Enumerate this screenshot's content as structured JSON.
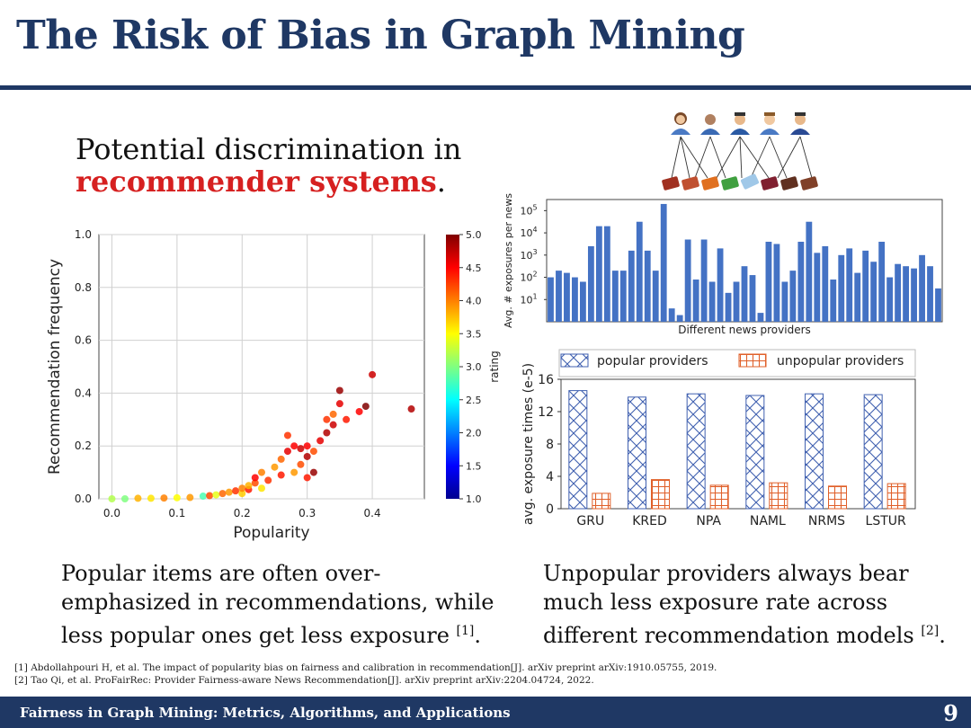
{
  "slide": {
    "title": "The Risk of Bias in Graph Mining",
    "subtitle_line1": "Potential discrimination in",
    "subtitle_highlight": "recommender systems",
    "subtitle_end": ".",
    "left_caption_lines": [
      "Popular items are often over-",
      "emphasized in recommendations, while",
      "less popular ones get less exposure"
    ],
    "left_caption_ref": "[1]",
    "left_caption_end": ".",
    "right_caption_lines": [
      "Unpopular providers always bear",
      "much less exposure rate across",
      "different recommendation models"
    ],
    "right_caption_ref": "[2]",
    "right_caption_end": ".",
    "references": [
      "[1] Abdollahpouri H, et al. The impact of popularity bias on fairness and calibration in recommendation[J]. arXiv preprint arXiv:1910.05755, 2019.",
      "[2] Tao Qi, et al. ProFairRec: Provider Fairness-aware News Recommendation[J]. arXiv preprint arXiv:2204.04724, 2022."
    ],
    "footer": "Fairness in Graph Mining: Metrics, Algorithms, and Applications",
    "page_number": "9"
  },
  "colors": {
    "title": "#1f3864",
    "highlight": "#d62020",
    "bar_blue": "#4472c4",
    "popular": "#4060b0",
    "unpopular": "#e0602a"
  },
  "chart_data": [
    {
      "type": "scatter",
      "xlabel": "Popularity",
      "ylabel": "Recommendation frequency",
      "xlim": [
        -0.02,
        0.48
      ],
      "ylim": [
        0.0,
        1.0
      ],
      "xticks": [
        "0.0",
        "0.1",
        "0.2",
        "0.3",
        "0.4"
      ],
      "xtick_values": [
        0.0,
        0.1,
        0.2,
        0.3,
        0.4
      ],
      "yticks": [
        "0.0",
        "0.2",
        "0.4",
        "0.6",
        "0.8",
        "1.0"
      ],
      "ytick_values": [
        0.0,
        0.2,
        0.4,
        0.6,
        0.8,
        1.0
      ],
      "colorbar": {
        "label": "rating",
        "min": 1.0,
        "max": 5.0,
        "ticks": [
          "1.0",
          "1.5",
          "2.0",
          "2.5",
          "3.0",
          "3.5",
          "4.0",
          "4.5",
          "5.0"
        ]
      },
      "grid": true,
      "points": [
        [
          0.0,
          0.0,
          3.2
        ],
        [
          0.02,
          0.0,
          3.0
        ],
        [
          0.04,
          0.002,
          3.8
        ],
        [
          0.06,
          0.002,
          3.6
        ],
        [
          0.08,
          0.003,
          4.0
        ],
        [
          0.1,
          0.004,
          3.5
        ],
        [
          0.12,
          0.005,
          3.9
        ],
        [
          0.14,
          0.01,
          2.8
        ],
        [
          0.15,
          0.012,
          4.2
        ],
        [
          0.16,
          0.015,
          3.4
        ],
        [
          0.17,
          0.02,
          4.1
        ],
        [
          0.18,
          0.025,
          3.9
        ],
        [
          0.19,
          0.03,
          4.3
        ],
        [
          0.2,
          0.02,
          3.7
        ],
        [
          0.2,
          0.04,
          4.0
        ],
        [
          0.21,
          0.035,
          4.4
        ],
        [
          0.21,
          0.05,
          3.8
        ],
        [
          0.22,
          0.06,
          4.2
        ],
        [
          0.22,
          0.08,
          4.5
        ],
        [
          0.23,
          0.04,
          3.6
        ],
        [
          0.23,
          0.1,
          4.0
        ],
        [
          0.24,
          0.07,
          4.3
        ],
        [
          0.25,
          0.12,
          3.9
        ],
        [
          0.26,
          0.09,
          4.4
        ],
        [
          0.26,
          0.15,
          4.1
        ],
        [
          0.27,
          0.18,
          4.6
        ],
        [
          0.27,
          0.24,
          4.3
        ],
        [
          0.28,
          0.1,
          3.9
        ],
        [
          0.28,
          0.2,
          4.5
        ],
        [
          0.29,
          0.13,
          4.2
        ],
        [
          0.29,
          0.19,
          4.7
        ],
        [
          0.3,
          0.08,
          4.4
        ],
        [
          0.3,
          0.16,
          4.8
        ],
        [
          0.3,
          0.2,
          4.5
        ],
        [
          0.31,
          0.1,
          4.9
        ],
        [
          0.31,
          0.18,
          4.2
        ],
        [
          0.32,
          0.22,
          4.6
        ],
        [
          0.33,
          0.25,
          4.8
        ],
        [
          0.33,
          0.3,
          4.3
        ],
        [
          0.34,
          0.28,
          4.7
        ],
        [
          0.34,
          0.32,
          4.1
        ],
        [
          0.35,
          0.36,
          4.6
        ],
        [
          0.35,
          0.41,
          4.9
        ],
        [
          0.36,
          0.3,
          4.4
        ],
        [
          0.38,
          0.33,
          4.5
        ],
        [
          0.39,
          0.35,
          5.0
        ],
        [
          0.4,
          0.47,
          4.7
        ],
        [
          0.46,
          0.34,
          4.8
        ]
      ]
    },
    {
      "type": "bar",
      "xlabel": "Different news providers",
      "ylabel": "Avg. # exposures per news",
      "yscale": "log",
      "ylim_log10": [
        0,
        5.5
      ],
      "yticks": [
        "10^1",
        "10^2",
        "10^3",
        "10^4",
        "10^5"
      ],
      "values_log10": [
        2.0,
        2.3,
        2.2,
        2.0,
        1.8,
        3.4,
        4.3,
        4.3,
        2.3,
        2.3,
        3.2,
        4.5,
        3.2,
        2.3,
        5.3,
        0.6,
        0.3,
        3.7,
        1.9,
        3.7,
        1.8,
        3.3,
        1.3,
        1.8,
        2.5,
        2.1,
        0.4,
        3.6,
        3.5,
        1.8,
        2.3,
        3.6,
        4.5,
        3.1,
        3.4,
        1.9,
        3.0,
        3.3,
        2.2,
        3.2,
        2.7,
        3.6,
        2.0,
        2.6,
        2.5,
        2.4,
        3.0,
        2.5,
        1.5
      ]
    },
    {
      "type": "bar",
      "xlabel": "",
      "ylabel": "avg. exposure times (e-5)",
      "categories": [
        "GRU",
        "KRED",
        "NPA",
        "NAML",
        "NRMS",
        "LSTUR"
      ],
      "ylim": [
        0,
        16
      ],
      "yticks": [
        "0",
        "4",
        "8",
        "12",
        "16"
      ],
      "ytick_values": [
        0,
        4,
        8,
        12,
        16
      ],
      "legend": [
        "popular providers",
        "unpopular providers"
      ],
      "series": [
        {
          "name": "popular providers",
          "values": [
            14.6,
            13.8,
            14.2,
            14.0,
            14.2,
            14.1
          ]
        },
        {
          "name": "unpopular providers",
          "values": [
            1.9,
            3.6,
            2.9,
            3.2,
            2.8,
            3.1
          ]
        }
      ]
    }
  ]
}
